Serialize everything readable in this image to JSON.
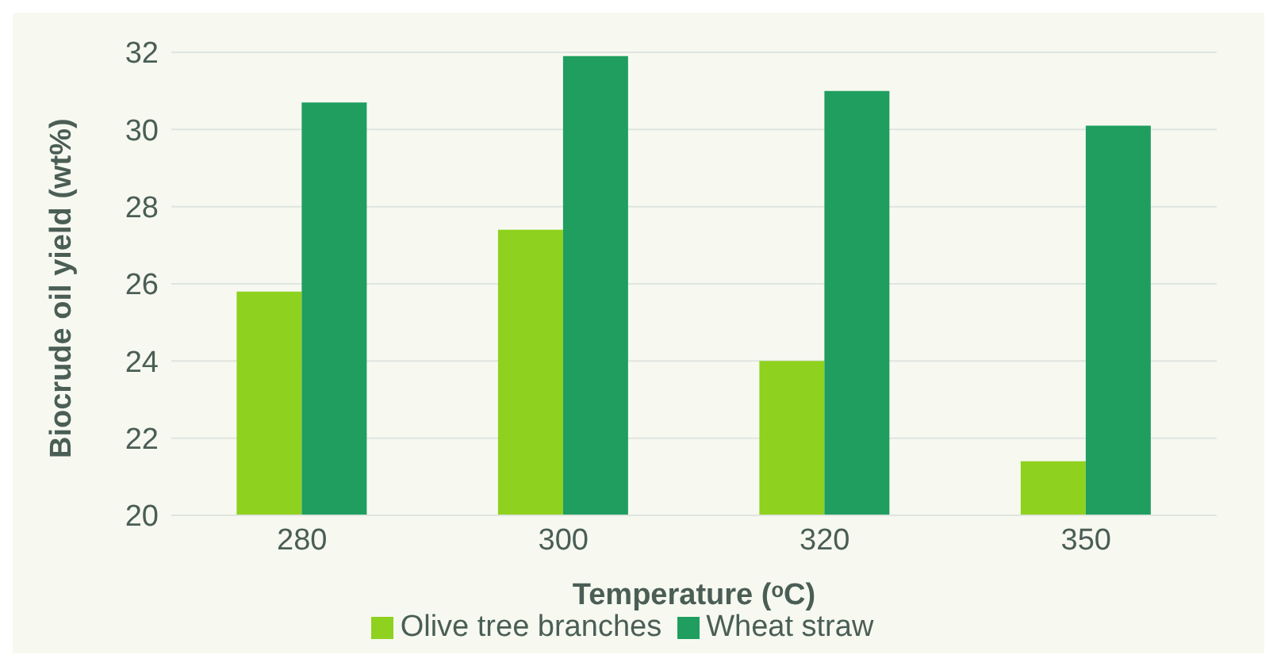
{
  "chart_data": {
    "type": "bar",
    "categories": [
      "280",
      "300",
      "320",
      "350"
    ],
    "xlabel": "Temperature (ᵒC)",
    "ylabel": "Biocrude oil yield (wt%)",
    "series": [
      {
        "name": "Olive tree branches",
        "color": "#8fd11f",
        "values": [
          25.8,
          27.4,
          24.0,
          21.4
        ]
      },
      {
        "name": "Wheat straw",
        "color": "#1f9e5f",
        "values": [
          30.7,
          31.9,
          31.0,
          30.1
        ]
      }
    ],
    "ylim": [
      20,
      32
    ],
    "yticks": [
      20,
      22,
      24,
      26,
      28,
      30,
      32
    ],
    "grid": "y",
    "legend": "bottom"
  }
}
